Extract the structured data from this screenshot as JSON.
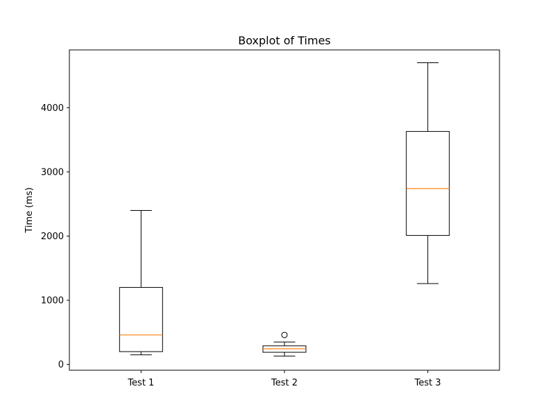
{
  "chart_data": {
    "type": "boxplot",
    "title": "Boxplot of Times",
    "xlabel": "",
    "ylabel": "Time (ms)",
    "ylim": [
      -90,
      4900
    ],
    "yticks": [
      0,
      1000,
      2000,
      3000,
      4000
    ],
    "categories": [
      "Test 1",
      "Test 2",
      "Test 3"
    ],
    "grid": false,
    "boxes": [
      {
        "label": "Test 1",
        "whisker_low": 150,
        "q1": 200,
        "median": 460,
        "q3": 1200,
        "whisker_high": 2400,
        "outliers": []
      },
      {
        "label": "Test 2",
        "whisker_low": 130,
        "q1": 190,
        "median": 245,
        "q3": 290,
        "whisker_high": 350,
        "outliers": [
          460
        ]
      },
      {
        "label": "Test 3",
        "whisker_low": 1260,
        "q1": 2010,
        "median": 2740,
        "q3": 3630,
        "whisker_high": 4700,
        "outliers": []
      }
    ],
    "colors": {
      "box": "#000000",
      "median": "#ff7f0e",
      "axes": "#000000"
    }
  }
}
